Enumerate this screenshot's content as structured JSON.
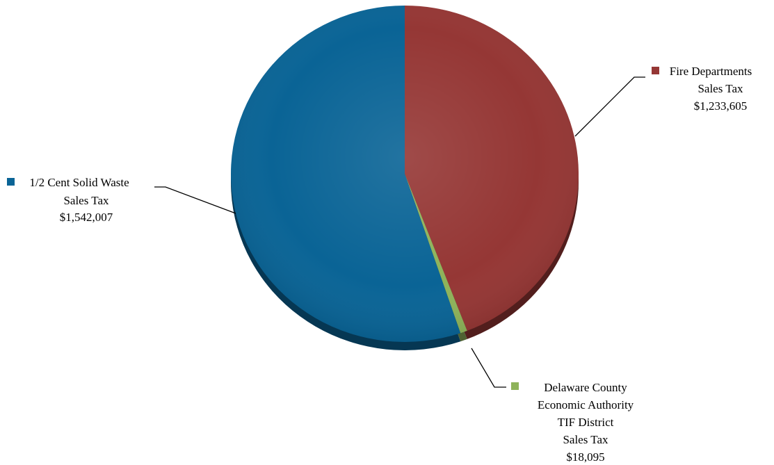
{
  "chart_data": {
    "type": "pie",
    "title": "",
    "slices": [
      {
        "name": "Fire Departments Sales Tax",
        "label_lines": [
          "Fire Departments",
          "Sales Tax",
          "$1,233,605"
        ],
        "value": 1233605,
        "color": "#953735"
      },
      {
        "name": "Delaware County Economic Authority TIF District Sales Tax",
        "label_lines": [
          "Delaware County",
          "Economic Authority",
          "TIF District",
          "Sales Tax",
          "$18,095"
        ],
        "value": 18095,
        "color": "#8eb35a"
      },
      {
        "name": "1/2 Cent Solid Waste Sales Tax",
        "label_lines": [
          "1/2 Cent Solid Waste",
          "Sales Tax",
          "$1,542,007"
        ],
        "value": 1542007,
        "color": "#0a6496"
      }
    ],
    "legend": "inline-labels",
    "start_angle": "top-clockwise"
  }
}
